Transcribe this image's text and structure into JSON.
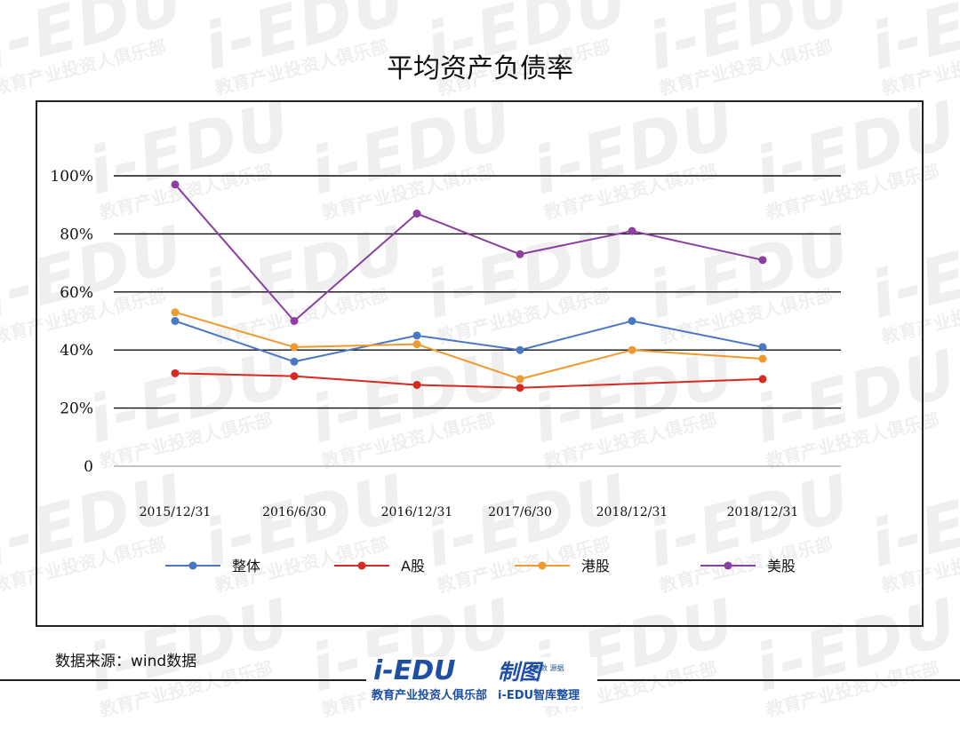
{
  "chart_data": {
    "type": "line",
    "title": "平均资产负债率",
    "categories": [
      "2015/12/31",
      "2016/6/30",
      "2016/12/31",
      "2017/6/30",
      "2018/12/31",
      "2018/12/31"
    ],
    "y_ticks": [
      "0",
      "20%",
      "40%",
      "60%",
      "80%",
      "100%"
    ],
    "ylim": [
      0,
      100
    ],
    "grid": true,
    "legend_position": "bottom",
    "series": [
      {
        "name": "整体",
        "color": "#4a78c2",
        "values": [
          50,
          36,
          45,
          40,
          50,
          41
        ]
      },
      {
        "name": "A股",
        "color": "#d42a22",
        "values": [
          32,
          31,
          28,
          27,
          null,
          30
        ]
      },
      {
        "name": "港股",
        "color": "#ee9a2e",
        "values": [
          53,
          41,
          42,
          30,
          40,
          37
        ]
      },
      {
        "name": "美股",
        "color": "#8b3fa0",
        "values": [
          97,
          50,
          87,
          73,
          81,
          71
        ]
      }
    ]
  },
  "footer": {
    "source": "数据来源：wind数据",
    "logo_brand": "i-EDU",
    "logo_mark": "制图",
    "logo_mark_sub": "来数\n源据",
    "logo_tagline": "教育产业投资人俱乐部",
    "logo_tagline2": "i-EDU智库整理"
  },
  "watermark": {
    "brand": "i-EDU",
    "tagline": "教育产业投资人俱乐部"
  }
}
